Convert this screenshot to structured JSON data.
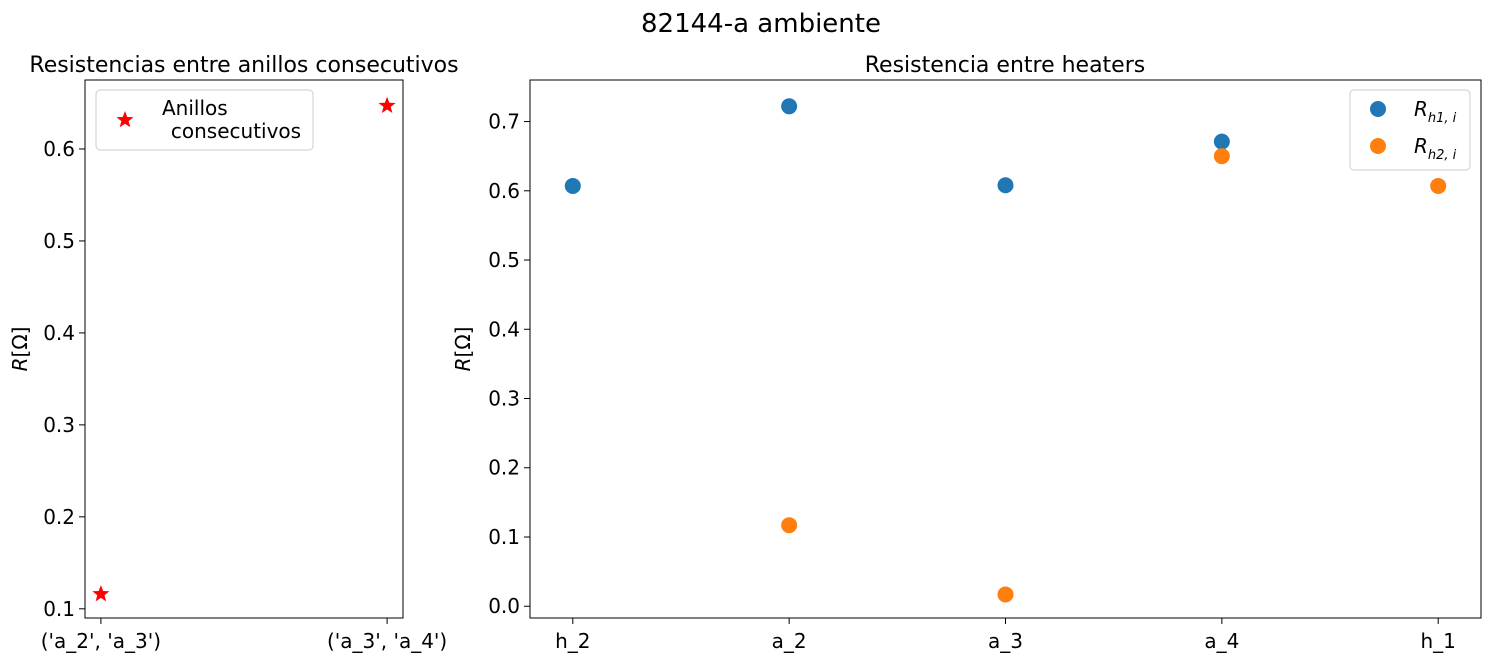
{
  "figure": {
    "suptitle": "82144-a ambiente"
  },
  "chart_data": [
    {
      "type": "scatter",
      "title": "Resistencias entre anillos consecutivos",
      "xlabel": "",
      "ylabel": "R[Ω]",
      "categories": [
        "('a_2', 'a_3')",
        "('a_3', 'a_4')"
      ],
      "ylim": [
        0.09,
        0.675
      ],
      "yticks": [
        0.1,
        0.2,
        0.3,
        0.4,
        0.5,
        0.6
      ],
      "ytick_labels": [
        "0.1",
        "0.2",
        "0.3",
        "0.4",
        "0.5",
        "0.6"
      ],
      "grid": false,
      "legend_position": "top-left",
      "series": [
        {
          "name": "Anillos\n consecutivos",
          "marker": "star",
          "color": "#ff0000",
          "values": [
            0.116,
            0.647
          ]
        }
      ]
    },
    {
      "type": "scatter",
      "title": "Resistencia entre heaters",
      "xlabel": "",
      "ylabel": "R[Ω]",
      "categories": [
        "h_2",
        "a_2",
        "a_3",
        "a_4",
        "h_1"
      ],
      "ylim": [
        -0.017,
        0.76
      ],
      "yticks": [
        0.0,
        0.1,
        0.2,
        0.3,
        0.4,
        0.5,
        0.6,
        0.7
      ],
      "ytick_labels": [
        "0.0",
        "0.1",
        "0.2",
        "0.3",
        "0.4",
        "0.5",
        "0.6",
        "0.7"
      ],
      "grid": false,
      "legend_position": "top-right",
      "series": [
        {
          "name": "R_{h1,i}",
          "label_main": "R",
          "label_sub": "h1, i",
          "marker": "circle",
          "color": "#1f77b4",
          "values": [
            0.607,
            0.722,
            0.608,
            0.671,
            null
          ]
        },
        {
          "name": "R_{h2,i}",
          "label_main": "R",
          "label_sub": "h2, i",
          "marker": "circle",
          "color": "#ff7f0e",
          "values": [
            null,
            0.117,
            0.017,
            0.65,
            0.607
          ]
        }
      ]
    }
  ]
}
